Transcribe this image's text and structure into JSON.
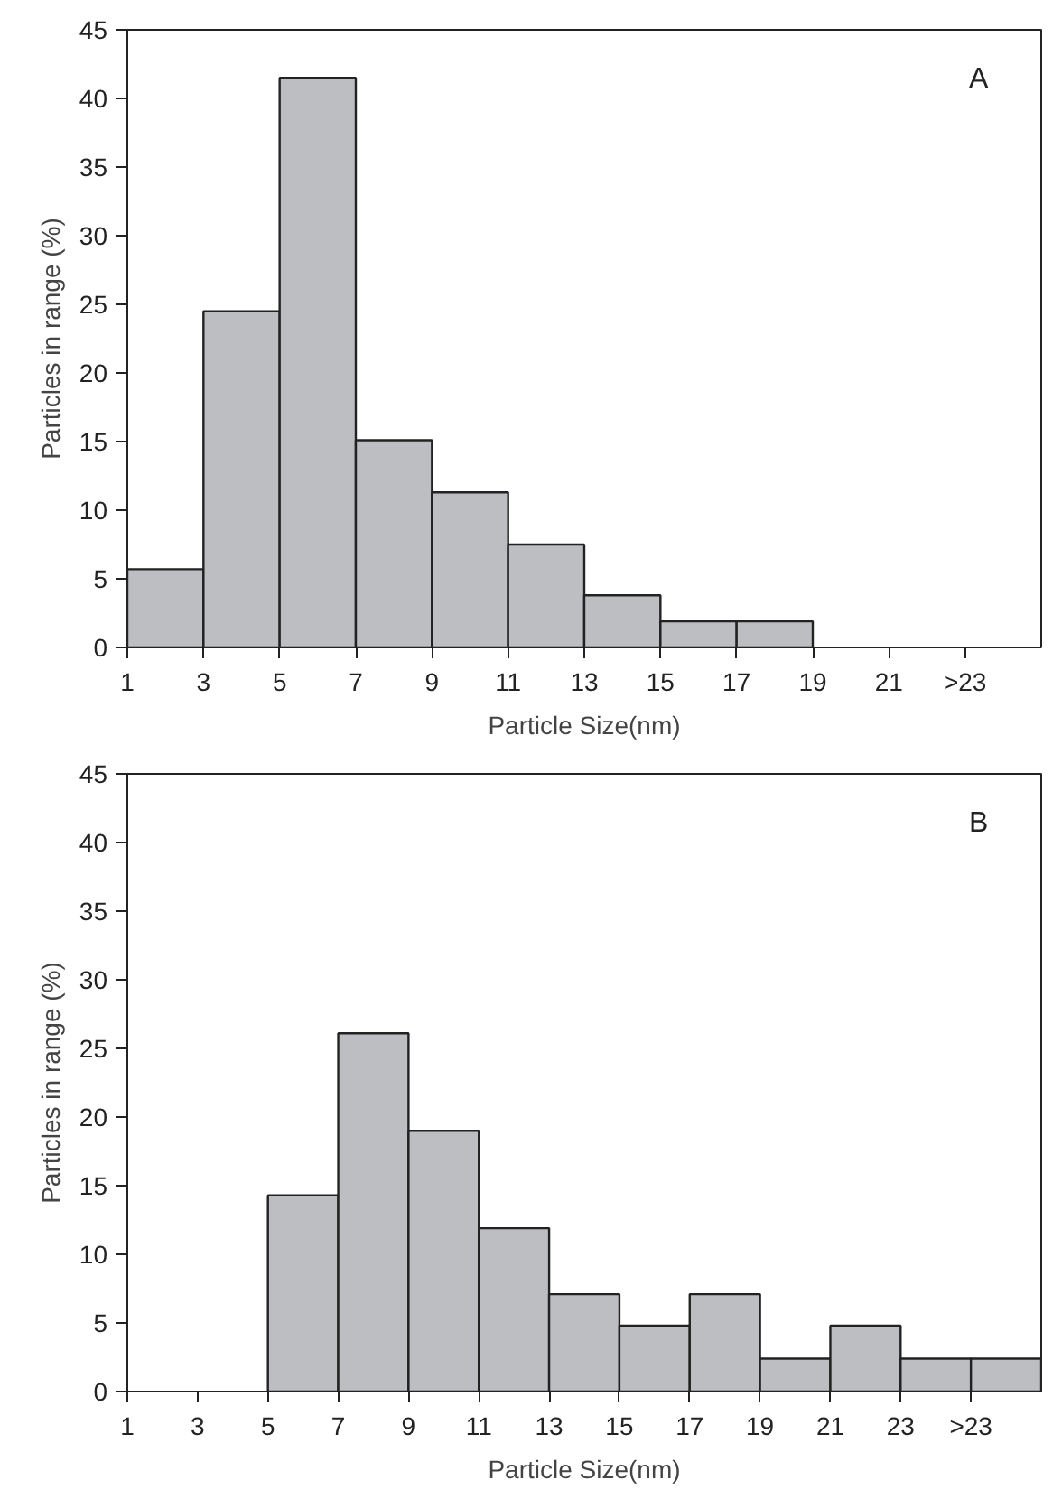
{
  "chart_data": [
    {
      "type": "histogram",
      "xlabel": "Particle Size(nm)",
      "ylabel": "Particles in range (%)",
      "annotations": [
        "A"
      ],
      "color": "#bdbec2",
      "bins": [
        1,
        3,
        5,
        7,
        9,
        11,
        13,
        15,
        17,
        19,
        21,
        23,
        25
      ],
      "values": [
        5.7,
        24.5,
        41.5,
        15.1,
        11.3,
        7.5,
        3.8,
        1.9,
        1.9,
        0,
        0,
        0
      ],
      "xlim": [
        1,
        25
      ],
      "xticks": [
        1,
        3,
        5,
        7,
        9,
        11,
        13,
        15,
        17,
        19,
        21,
        {
          "value": 23,
          "label": ">23"
        }
      ],
      "ylim": [
        0,
        45
      ],
      "yticks": [
        0,
        5,
        10,
        15,
        20,
        25,
        30,
        35,
        40,
        45
      ],
      "grid": false
    },
    {
      "type": "histogram",
      "xlabel": "Particle Size(nm)",
      "ylabel": "Particles in range (%)",
      "annotations": [
        "B"
      ],
      "color": "#bdbec2",
      "bins": [
        1,
        3,
        5,
        7,
        9,
        11,
        13,
        15,
        17,
        19,
        21,
        23,
        25,
        27
      ],
      "values": [
        0,
        0,
        14.3,
        26.1,
        19,
        11.9,
        7.1,
        4.8,
        7.1,
        2.4,
        4.8,
        2.4,
        2.4
      ],
      "xlim": [
        1,
        27
      ],
      "xticks": [
        1,
        3,
        5,
        7,
        9,
        11,
        13,
        15,
        17,
        19,
        21,
        23,
        {
          "value": 25,
          "label": ">23"
        }
      ],
      "ylim": [
        0,
        45
      ],
      "yticks": [
        0,
        5,
        10,
        15,
        20,
        25,
        30,
        35,
        40,
        45
      ],
      "grid": false
    }
  ]
}
